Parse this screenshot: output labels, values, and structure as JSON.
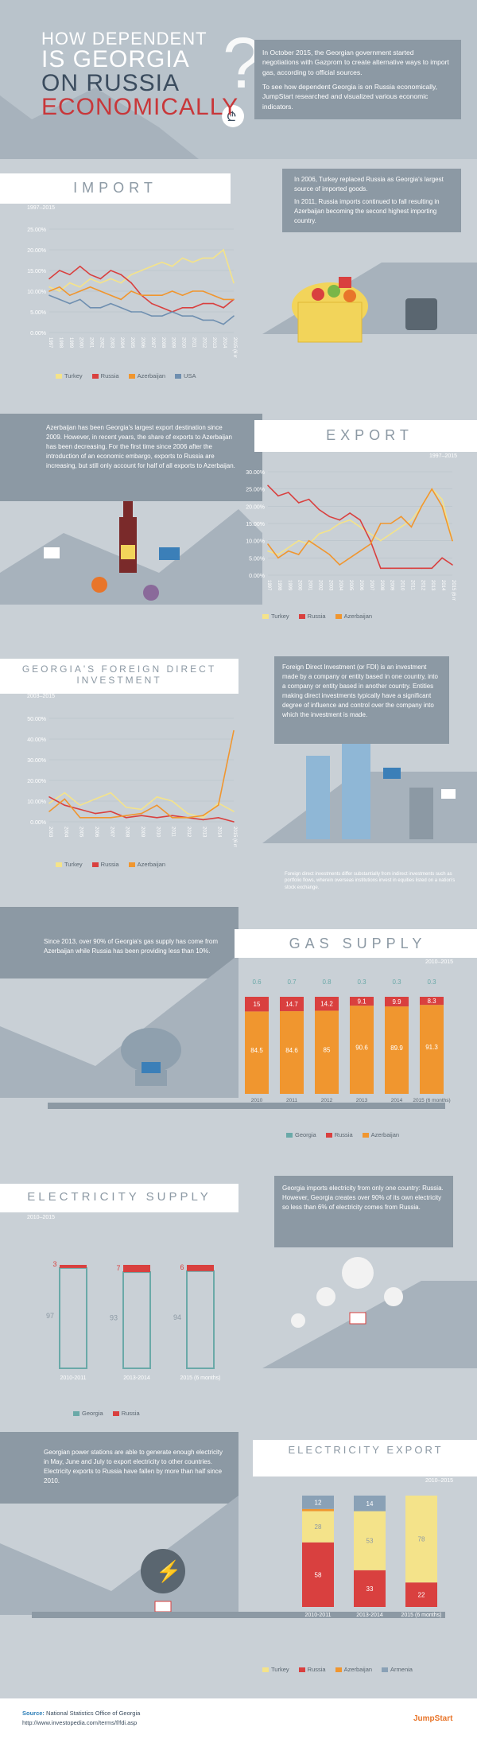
{
  "header": {
    "line1": "HOW DEPENDENT",
    "line2": "IS GEORGIA",
    "line3": "ON RUSSIA",
    "line4": "ECONOMICALLY",
    "intro_p1": "In October 2015, the Georgian government started negotiations with Gazprom to create alternative ways to import gas, according to official sources.",
    "intro_p2": "To see how dependent Georgia is on Russia economically, JumpStart researched and visualized various economic indicators."
  },
  "import": {
    "title": "IMPORT",
    "period": "1997–2015",
    "note1": "In 2006, Turkey replaced Russia as Georgia's largest source of imported goods.",
    "note2": "In 2011, Russia imports continued to fall resulting in Azerbaijan becoming the second highest importing country."
  },
  "export": {
    "title": "EXPORT",
    "period": "1997–2015",
    "note": "Azerbaijan has been Georgia's largest export destination since 2009. However, in recent years, the share of exports to Azerbaijan has been decreasing. For the first time since 2006 after the introduction of an economic embargo, exports to Russia are increasing, but still only account for half of all exports to Azerbaijan."
  },
  "fdi": {
    "title": "GEORGIA'S FOREIGN DIRECT INVESTMENT",
    "period": "2003–2015",
    "note": "Foreign Direct Investment (or FDI) is an investment made by a company or entity based in one country, into a company or entity based in another country. Entities making direct investments typically have a significant degree of influence and control over the company into which the investment is made.",
    "footnote": "Foreign direct investments differ substantially from indirect investments such as portfolio flows, wherein overseas institutions invest in equities listed on a nation's stock exchange."
  },
  "gas": {
    "title": "GAS SUPPLY",
    "period": "2010–2015",
    "note": "Since 2013, over 90% of Georgia's gas supply has come from Azerbaijan while Russia has been providing less than 10%."
  },
  "electricity": {
    "title": "ELECTRICITY SUPPLY",
    "period": "2010–2015",
    "note": "Georgia imports electricity from only one country: Russia. However, Georgia creates over 90% of its own electricity so less than 6% of electricity comes from Russia."
  },
  "elexport": {
    "title": "ELECTRICITY EXPORT",
    "period": "2010–2015",
    "note": "Georgian power stations are able to generate enough electricity in May, June and July to export electricity to other countries. Electricity exports to Russia have fallen by more than half since 2010."
  },
  "footer": {
    "source_label": "Source:",
    "source1": "National Statistics Office of Georgia",
    "source2": "http://www.investopedia.com/terms/f/fdi.asp",
    "brand": "JumpStart"
  },
  "colors": {
    "turkey": "#f4e38a",
    "russia": "#d9403f",
    "azerbaijan": "#f0962f",
    "usa": "#6f8fb0",
    "georgia": "#6aa9a8",
    "armenia": "#8aa1b6"
  },
  "chart_data": [
    {
      "id": "import",
      "type": "line",
      "x": [
        "1997",
        "1998",
        "1999",
        "2000",
        "2001",
        "2002",
        "2003",
        "2004",
        "2005",
        "2006",
        "2007",
        "2008",
        "2009",
        "2010",
        "2011",
        "2012",
        "2013",
        "2014",
        "2015 (6 months)"
      ],
      "ylim": [
        0,
        25
      ],
      "yticks": [
        "0.00%",
        "5.00%",
        "10.00%",
        "15.00%",
        "20.00%",
        "25.00%"
      ],
      "series": [
        {
          "name": "Turkey",
          "color": "#f4e38a",
          "values": [
            11,
            10,
            12,
            11,
            13,
            12,
            13,
            12,
            14,
            15,
            16,
            17,
            16,
            18,
            17,
            18,
            18,
            20,
            12
          ]
        },
        {
          "name": "Russia",
          "color": "#d9403f",
          "values": [
            13,
            15,
            14,
            16,
            14,
            13,
            15,
            14,
            12,
            9,
            7,
            6,
            5,
            6,
            6,
            7,
            7,
            6,
            8
          ]
        },
        {
          "name": "Azerbaijan",
          "color": "#f0962f",
          "values": [
            10,
            11,
            9,
            10,
            11,
            10,
            9,
            8,
            10,
            9,
            9,
            9,
            10,
            9,
            10,
            10,
            9,
            8,
            8
          ]
        },
        {
          "name": "USA",
          "color": "#6f8fb0",
          "values": [
            9,
            8,
            7,
            8,
            6,
            6,
            7,
            6,
            5,
            5,
            4,
            4,
            5,
            4,
            4,
            3,
            3,
            2,
            4
          ]
        }
      ]
    },
    {
      "id": "export",
      "type": "line",
      "x": [
        "1997",
        "1998",
        "1999",
        "2000",
        "2001",
        "2002",
        "2003",
        "2004",
        "2005",
        "2006",
        "2007",
        "2008",
        "2009",
        "2010",
        "2011",
        "2012",
        "2013",
        "2014",
        "2015 (6 months)"
      ],
      "ylim": [
        0,
        30
      ],
      "yticks": [
        "0.00%",
        "5.00%",
        "10.00%",
        "15.00%",
        "20.00%",
        "25.00%",
        "30.00%"
      ],
      "series": [
        {
          "name": "Turkey",
          "color": "#f4e38a",
          "values": [
            7,
            6,
            8,
            10,
            9,
            12,
            13,
            15,
            16,
            14,
            12,
            10,
            12,
            14,
            16,
            20,
            25,
            22,
            10
          ]
        },
        {
          "name": "Russia",
          "color": "#d9403f",
          "values": [
            26,
            23,
            24,
            21,
            22,
            19,
            17,
            16,
            18,
            16,
            10,
            2,
            2,
            2,
            2,
            2,
            2,
            5,
            3
          ]
        },
        {
          "name": "Azerbaijan",
          "color": "#f0962f",
          "values": [
            9,
            5,
            7,
            6,
            10,
            8,
            6,
            3,
            5,
            7,
            9,
            15,
            15,
            17,
            14,
            20,
            25,
            20,
            10
          ]
        }
      ]
    },
    {
      "id": "fdi",
      "type": "line",
      "x": [
        "2003",
        "2004",
        "2005",
        "2006",
        "2007",
        "2008",
        "2009",
        "2010",
        "2011",
        "2012",
        "2013",
        "2014",
        "2015 (6 months)"
      ],
      "ylim": [
        0,
        50
      ],
      "yticks": [
        "0.00%",
        "10.00%",
        "20.00%",
        "30.00%",
        "40.00%",
        "50.00%"
      ],
      "series": [
        {
          "name": "Turkey",
          "color": "#f4e38a",
          "values": [
            9,
            14,
            8,
            11,
            14,
            7,
            6,
            12,
            10,
            4,
            2,
            9,
            5
          ]
        },
        {
          "name": "Russia",
          "color": "#d9403f",
          "values": [
            12,
            8,
            6,
            4,
            5,
            2,
            3,
            2,
            3,
            2,
            1,
            2,
            0
          ]
        },
        {
          "name": "Azerbaijan",
          "color": "#f0962f",
          "values": [
            5,
            11,
            2,
            2,
            2,
            3,
            4,
            8,
            2,
            2,
            3,
            8,
            44
          ]
        }
      ]
    },
    {
      "id": "gas",
      "type": "bar",
      "categories": [
        "2010",
        "2011",
        "2012",
        "2013",
        "2014",
        "2015 (6 months)"
      ],
      "series": [
        {
          "name": "Georgia",
          "color": "#6aa9a8",
          "values": [
            0.6,
            0.7,
            0.8,
            0.3,
            0.3,
            0.3
          ]
        },
        {
          "name": "Russia",
          "color": "#d9403f",
          "values": [
            15,
            14.7,
            14.2,
            9.1,
            9.9,
            8.3
          ]
        },
        {
          "name": "Azerbaijan",
          "color": "#f0962f",
          "values": [
            84.5,
            84.6,
            85,
            90.6,
            89.9,
            91.3
          ]
        }
      ]
    },
    {
      "id": "electricity",
      "type": "bar",
      "categories": [
        "2010-2011",
        "2013-2014",
        "2015 (6 months)"
      ],
      "series": [
        {
          "name": "Georgia",
          "color": "#6aa9a8",
          "values": [
            97,
            93,
            94
          ]
        },
        {
          "name": "Russia",
          "color": "#d9403f",
          "values": [
            3,
            7,
            6
          ]
        }
      ]
    },
    {
      "id": "elexport",
      "type": "bar",
      "categories": [
        "2010-2011",
        "2013-2014",
        "2015 (6 months)"
      ],
      "series": [
        {
          "name": "Turkey",
          "color": "#f4e38a",
          "values": [
            28,
            53,
            78
          ]
        },
        {
          "name": "Russia",
          "color": "#d9403f",
          "values": [
            58,
            33,
            22
          ]
        },
        {
          "name": "Azerbaijan",
          "color": "#f0962f",
          "values": [
            2,
            0,
            0
          ]
        },
        {
          "name": "Armenia",
          "color": "#8aa1b6",
          "values": [
            12,
            14,
            0
          ]
        }
      ]
    }
  ]
}
